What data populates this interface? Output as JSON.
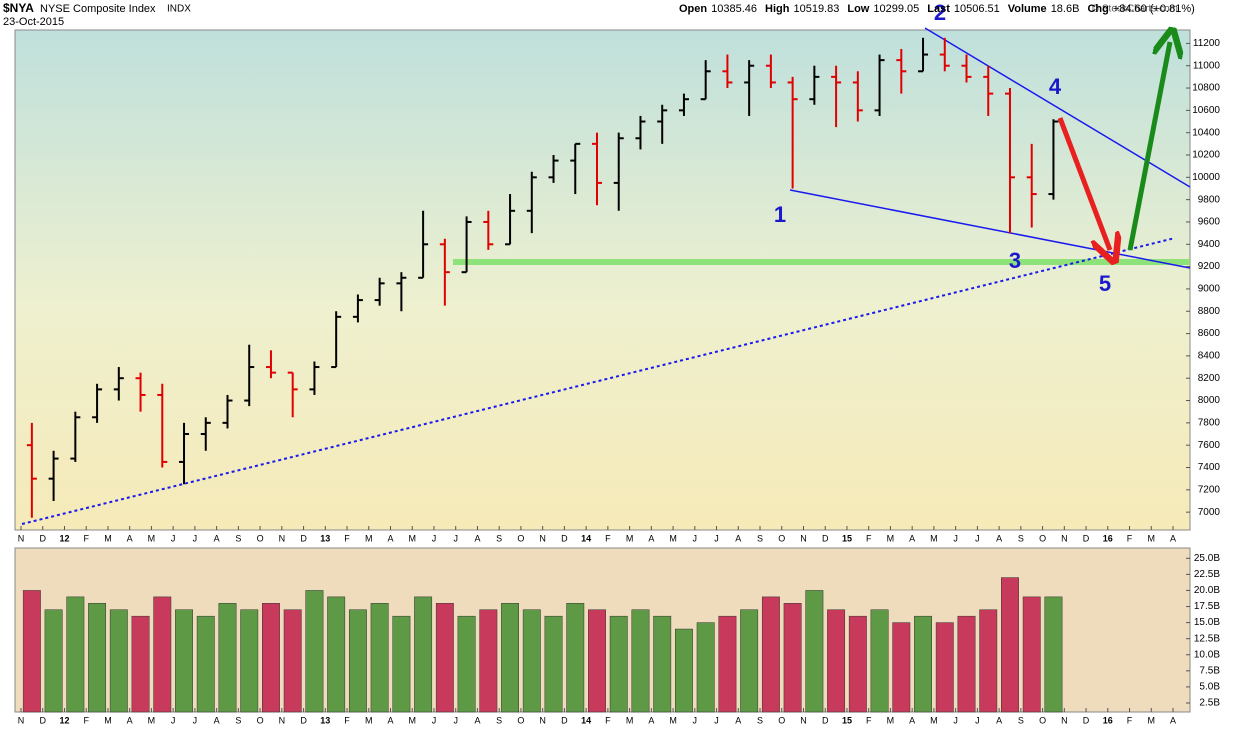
{
  "header": {
    "symbol": "$NYA",
    "name": "NYSE Composite Index",
    "exchange": "INDX",
    "date": "23-Oct-2015",
    "quote": [
      {
        "label": "Open",
        "value": 10385.46
      },
      {
        "label": "High",
        "value": 10519.83
      },
      {
        "label": "Low",
        "value": 10299.05
      },
      {
        "label": "Last",
        "value": 10506.51
      },
      {
        "label": "Volume",
        "value": "18.6B"
      },
      {
        "label": "Chg",
        "value": "+84.60 (+0.81%)"
      }
    ],
    "credit": "© StockCharts.com"
  },
  "annotations": [
    "1",
    "2",
    "3",
    "4",
    "5"
  ],
  "chart_data": [
    {
      "type": "ohlc",
      "name": "price",
      "categories": [
        "N",
        "D",
        "12",
        "F",
        "M",
        "A",
        "M",
        "J",
        "J",
        "A",
        "S",
        "O",
        "N",
        "D",
        "13",
        "F",
        "M",
        "A",
        "M",
        "J",
        "J",
        "A",
        "S",
        "O",
        "N",
        "D",
        "14",
        "F",
        "M",
        "A",
        "M",
        "J",
        "J",
        "A",
        "S",
        "O",
        "N",
        "D",
        "15",
        "F",
        "M",
        "A",
        "M",
        "J",
        "J",
        "A",
        "S",
        "O",
        "N",
        "D",
        "16",
        "F",
        "M",
        "A"
      ],
      "open": [
        7600,
        7300,
        7480,
        7850,
        8100,
        8200,
        8050,
        7450,
        7700,
        7800,
        8000,
        8300,
        8250,
        8100,
        8300,
        8750,
        8900,
        9050,
        9100,
        9400,
        9150,
        9600,
        9400,
        9700,
        10000,
        10150,
        10300,
        9950,
        10350,
        10500,
        10600,
        10700,
        10950,
        10850,
        11000,
        10850,
        10700,
        10900,
        10850,
        10600,
        11050,
        10950,
        11100,
        11000,
        10900,
        10750,
        10000,
        9850,
        null,
        null,
        null,
        null,
        null,
        null
      ],
      "high": [
        7800,
        7550,
        7900,
        8150,
        8300,
        8250,
        8150,
        7800,
        7850,
        8050,
        8500,
        8450,
        8250,
        8350,
        8800,
        8950,
        9100,
        9150,
        9700,
        9450,
        9650,
        9700,
        9850,
        10050,
        10200,
        10300,
        10400,
        10400,
        10550,
        10650,
        10750,
        11050,
        11100,
        11050,
        11100,
        10900,
        11000,
        11000,
        10950,
        11100,
        11150,
        11250,
        11250,
        11100,
        11000,
        10800,
        10300,
        10520,
        null,
        null,
        null,
        null,
        null,
        null
      ],
      "low": [
        6950,
        7100,
        7450,
        7800,
        8000,
        7900,
        7400,
        7250,
        7550,
        7750,
        7950,
        8200,
        7850,
        8050,
        8300,
        8700,
        8850,
        8800,
        9100,
        8850,
        9150,
        9350,
        9400,
        9500,
        9950,
        9850,
        9750,
        9700,
        10250,
        10300,
        10550,
        10700,
        10800,
        10550,
        10800,
        9900,
        10650,
        10450,
        10500,
        10550,
        10750,
        10950,
        10950,
        10850,
        10550,
        9500,
        9550,
        9800,
        null,
        null,
        null,
        null,
        null,
        null
      ],
      "close": [
        7300,
        7480,
        7850,
        8100,
        8200,
        8050,
        7450,
        7700,
        7800,
        8000,
        8300,
        8250,
        8100,
        8300,
        8750,
        8900,
        9050,
        9100,
        9400,
        9150,
        9600,
        9400,
        9700,
        10000,
        10150,
        10300,
        9950,
        10350,
        10500,
        10600,
        10700,
        10950,
        10850,
        11000,
        10850,
        10700,
        10900,
        10850,
        10600,
        11050,
        10950,
        11100,
        11000,
        10900,
        10750,
        10000,
        9850,
        10500,
        null,
        null,
        null,
        null,
        null,
        null
      ],
      "up_color": "#000000",
      "down_color": "#e00000",
      "ylim": [
        6840,
        11320
      ],
      "yticks": [
        7000,
        7200,
        7400,
        7600,
        7800,
        8000,
        8200,
        8400,
        8600,
        8800,
        9000,
        9200,
        9400,
        9600,
        9800,
        10000,
        10200,
        10400,
        10600,
        10800,
        11000,
        11200
      ],
      "grid": false
    },
    {
      "type": "volume",
      "name": "volume",
      "values": [
        20,
        17,
        19,
        18,
        17,
        16,
        19,
        17,
        16,
        18,
        17,
        18,
        17,
        20,
        19,
        17,
        18,
        16,
        19,
        18,
        16,
        17,
        18,
        17,
        16,
        18,
        17,
        16,
        17,
        16,
        14,
        15,
        16,
        17,
        19,
        18,
        20,
        17,
        16,
        17,
        15,
        16,
        15,
        16,
        17,
        22,
        19,
        19,
        null,
        null,
        null,
        null,
        null,
        null
      ],
      "up_color": "#5e9a45",
      "down_color": "#c83a5c",
      "ylim": [
        1.1,
        26.6
      ],
      "yticks": [
        {
          "value": 2.5,
          "label": "2.5B"
        },
        {
          "value": 5,
          "label": "5.0B"
        },
        {
          "value": 7.5,
          "label": "7.5B"
        },
        {
          "value": 10,
          "label": "10.0B"
        },
        {
          "value": 12.5,
          "label": "12.5B"
        },
        {
          "value": 15,
          "label": "15.0B"
        },
        {
          "value": 17.5,
          "label": "17.5B"
        },
        {
          "value": 20,
          "label": "20.0B"
        },
        {
          "value": 22.5,
          "label": "22.5B"
        },
        {
          "value": 25,
          "label": "25.0B"
        }
      ],
      "grid": false
    }
  ]
}
